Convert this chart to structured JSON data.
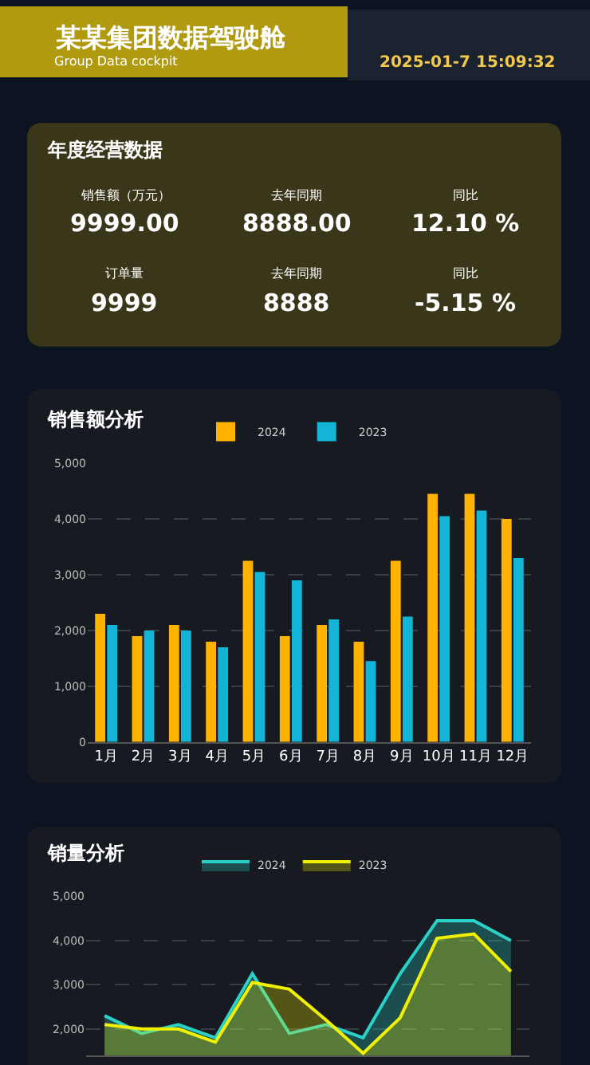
{
  "chart_data": [
    {
      "type": "other",
      "title": "某某集团数据驾驶舱",
      "subtitle": "Group Data cockpit",
      "annotations": [
        "2025-01-7 15:09:32"
      ]
    },
    {
      "type": "other",
      "title": "年度经营数据",
      "annotations": [
        "销售额（万元）",
        "去年同期",
        "同比",
        "9999.00",
        "8888.00",
        "12.10 %",
        "订单量",
        "去年同期",
        "同比",
        "9999",
        "8888",
        "-5.15 %"
      ]
    },
    {
      "type": "bar",
      "title": "销售额分析",
      "categories": [
        "1月",
        "2月",
        "3月",
        "4月",
        "5月",
        "6月",
        "7月",
        "8月",
        "9月",
        "10月",
        "11月",
        "12月"
      ],
      "series": [
        {
          "name": "2024",
          "color": "#ffb300",
          "values": [
            2300,
            1900,
            2100,
            1800,
            3250,
            1900,
            2100,
            1800,
            3250,
            4450,
            4450,
            4000
          ]
        },
        {
          "name": "2023",
          "color": "#13b5d6",
          "values": [
            2100,
            2000,
            2000,
            1700,
            3050,
            2900,
            2200,
            1450,
            2250,
            4050,
            4150,
            3300
          ]
        }
      ],
      "ylim": [
        0,
        5000
      ],
      "yticks": [
        0,
        {
          "value": 1000,
          "label": "1,000"
        },
        {
          "value": 2000,
          "label": "2,000"
        },
        {
          "value": 3000,
          "label": "3,000"
        },
        {
          "value": 4000,
          "label": "4,000"
        },
        {
          "value": 5000,
          "label": "5,000"
        }
      ],
      "grid": "y",
      "legend": "top"
    },
    {
      "type": "area",
      "title": "销量分析",
      "categories": [
        null,
        null,
        null,
        null,
        null,
        null,
        null,
        null,
        null,
        null,
        null,
        null
      ],
      "series": [
        {
          "name": "2024",
          "color": "#2ad1c9",
          "values": [
            2300,
            1900,
            2100,
            1800,
            3250,
            1900,
            2100,
            1800,
            3250,
            4450,
            4450,
            4000
          ]
        },
        {
          "name": "2023",
          "color": "#f0f000",
          "values": [
            2100,
            2000,
            2000,
            1700,
            3050,
            2900,
            2200,
            1450,
            2250,
            4050,
            4150,
            3300
          ]
        }
      ],
      "ylim": [
        1400,
        5000
      ],
      "yticks": [
        {
          "value": 2000,
          "label": "2,000"
        },
        {
          "value": 3000,
          "label": "3,000"
        },
        {
          "value": 4000,
          "label": "4,000"
        },
        {
          "value": 5000,
          "label": "5,000"
        }
      ],
      "grid": "y",
      "legend": "top",
      "tick_labels": "y",
      "marker": "none",
      "line_style": "solid"
    }
  ]
}
